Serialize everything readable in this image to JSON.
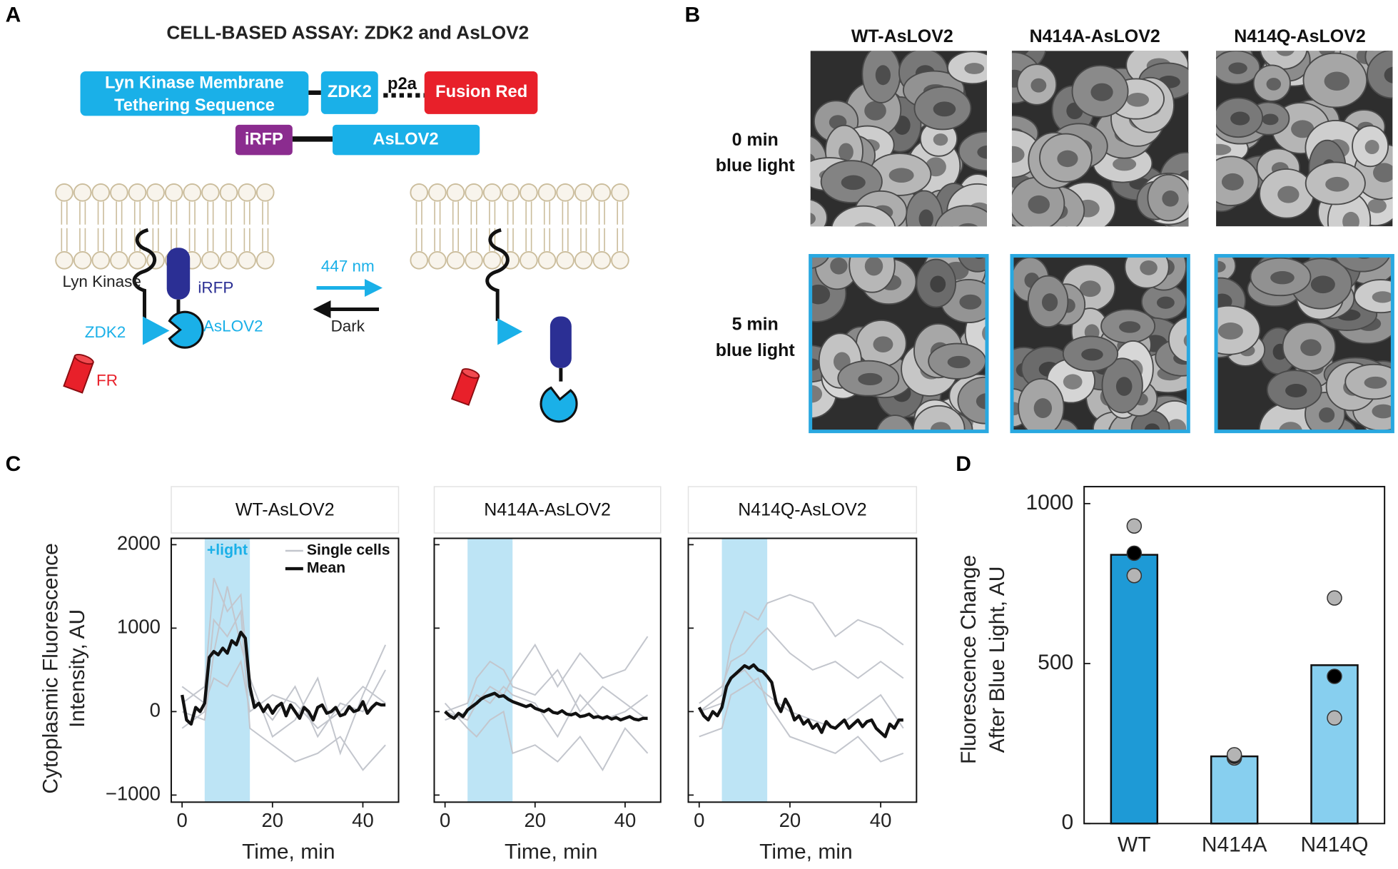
{
  "panels": {
    "A": {
      "letter": "A",
      "title": "CELL-BASED ASSAY: ZDK2 and AsLOV2",
      "construct1": {
        "tether": [
          "Lyn Kinase Membrane",
          "Tethering Sequence"
        ],
        "zdk2": "ZDK2",
        "p2a": "p2a",
        "fusion_red": "Fusion Red"
      },
      "construct2": {
        "irfp": "iRFP",
        "aslov2": "AsLOV2"
      },
      "diagram": {
        "lyn_kinase": "Lyn Kinase",
        "irfp": "iRFP",
        "zdk2": "ZDK2",
        "aslov2": "AsLOV2",
        "fr": "FR",
        "light": "447 nm",
        "dark": "Dark"
      }
    },
    "B": {
      "letter": "B",
      "columns": [
        "WT-AsLOV2",
        "N414A-AsLOV2",
        "N414Q-AsLOV2"
      ],
      "rows": [
        [
          "0 min",
          "blue light"
        ],
        [
          "5 min",
          "blue light"
        ]
      ]
    },
    "C": {
      "letter": "C"
    },
    "D": {
      "letter": "D"
    }
  },
  "chart_data": [
    {
      "type": "line",
      "title": "WT-AsLOV2",
      "xlabel": "Time, min",
      "ylabel": [
        "Cytoplasmic Fluorescence",
        "Intensity, AU"
      ],
      "xlim": [
        -2.4,
        47.9
      ],
      "ylim": [
        -1085,
        2076
      ],
      "xticks": [
        0,
        20,
        40
      ],
      "yticks": [
        {
          "value": -1000,
          "label": "−1000"
        },
        0,
        1000,
        2000
      ],
      "show_ytick_labels": true,
      "shaded": {
        "start": 5,
        "end": 15,
        "color": "#bde4f5"
      },
      "annotation": "+light",
      "legend": true,
      "series": [
        {
          "name": "Single cells",
          "color": "#c3c6cd",
          "x": [
            0,
            5,
            7,
            10,
            13,
            15,
            20,
            25,
            30,
            35,
            40,
            45
          ],
          "traces": [
            [
              100,
              300,
              1600,
              1200,
              1400,
              200,
              -100,
              300,
              -300,
              100,
              0,
              500
            ],
            [
              -200,
              0,
              1100,
              900,
              1200,
              -200,
              -400,
              -600,
              -500,
              -300,
              -700,
              -400
            ],
            [
              300,
              100,
              400,
              300,
              600,
              0,
              200,
              100,
              -200,
              0,
              300,
              100
            ],
            [
              0,
              -100,
              700,
              1500,
              800,
              400,
              -300,
              -100,
              400,
              -500,
              200,
              800
            ]
          ]
        },
        {
          "name": "Mean",
          "color": "#111111",
          "x": [
            0,
            1,
            2,
            3,
            4,
            5,
            6,
            7,
            8,
            9,
            10,
            11,
            12,
            13,
            14,
            15,
            16,
            17,
            18,
            19,
            20,
            21,
            22,
            23,
            24,
            25,
            26,
            27,
            28,
            29,
            30,
            31,
            32,
            33,
            34,
            35,
            36,
            37,
            38,
            39,
            40,
            41,
            42,
            43,
            44,
            45
          ],
          "values": [
            200,
            -100,
            -150,
            50,
            0,
            100,
            650,
            720,
            680,
            760,
            700,
            850,
            800,
            950,
            880,
            300,
            50,
            100,
            0,
            80,
            -20,
            60,
            100,
            -50,
            80,
            0,
            -80,
            50,
            0,
            -100,
            50,
            80,
            -20,
            0,
            50,
            -50,
            -30,
            60,
            0,
            20,
            120,
            -20,
            50,
            100,
            80,
            80
          ]
        }
      ]
    },
    {
      "type": "line",
      "title": "N414A-AsLOV2",
      "xlabel": "Time, min",
      "xlim": [
        -2.4,
        47.9
      ],
      "ylim": [
        -1085,
        2076
      ],
      "xticks": [
        0,
        20,
        40
      ],
      "yticks": [
        -1000,
        0,
        1000,
        2000
      ],
      "show_ytick_labels": false,
      "shaded": {
        "start": 5,
        "end": 15,
        "color": "#bde4f5"
      },
      "series": [
        {
          "name": "Single cells",
          "color": "#c3c6cd",
          "x": [
            0,
            5,
            7,
            10,
            13,
            15,
            20,
            25,
            30,
            35,
            40,
            45
          ],
          "traces": [
            [
              0,
              -100,
              100,
              300,
              200,
              400,
              800,
              300,
              700,
              400,
              500,
              900
            ],
            [
              -100,
              0,
              200,
              100,
              300,
              200,
              100,
              -300,
              200,
              -100,
              0,
              200
            ],
            [
              100,
              -200,
              -300,
              -100,
              0,
              -500,
              -400,
              -600,
              -300,
              -700,
              -200,
              -500
            ],
            [
              0,
              100,
              400,
              600,
              500,
              300,
              200,
              500,
              0,
              300,
              100,
              -100
            ]
          ]
        },
        {
          "name": "Mean",
          "color": "#111111",
          "x": [
            0,
            1,
            2,
            3,
            4,
            5,
            6,
            7,
            8,
            9,
            10,
            11,
            12,
            13,
            14,
            15,
            16,
            17,
            18,
            19,
            20,
            21,
            22,
            23,
            24,
            25,
            26,
            27,
            28,
            29,
            30,
            31,
            32,
            33,
            34,
            35,
            36,
            37,
            38,
            39,
            40,
            41,
            42,
            43,
            44,
            45
          ],
          "values": [
            0,
            -50,
            -80,
            -20,
            -60,
            20,
            60,
            100,
            150,
            180,
            200,
            220,
            180,
            190,
            150,
            120,
            100,
            80,
            60,
            80,
            40,
            20,
            0,
            30,
            -10,
            -20,
            10,
            -30,
            -40,
            -20,
            -60,
            -50,
            -30,
            -70,
            -60,
            -80,
            -60,
            -90,
            -70,
            -100,
            -80,
            -60,
            -90,
            -100,
            -80,
            -80
          ]
        }
      ]
    },
    {
      "type": "line",
      "title": "N414Q-AsLOV2",
      "xlabel": "Time, min",
      "xlim": [
        -2.4,
        47.9
      ],
      "ylim": [
        -1085,
        2076
      ],
      "xticks": [
        0,
        20,
        40
      ],
      "yticks": [
        -1000,
        0,
        1000,
        2000
      ],
      "show_ytick_labels": false,
      "shaded": {
        "start": 5,
        "end": 15,
        "color": "#bde4f5"
      },
      "series": [
        {
          "name": "Single cells",
          "color": "#c3c6cd",
          "x": [
            0,
            5,
            7,
            10,
            13,
            15,
            20,
            25,
            30,
            35,
            40,
            45
          ],
          "traces": [
            [
              0,
              200,
              800,
              1200,
              1100,
              1300,
              1400,
              1300,
              900,
              1100,
              1000,
              800
            ],
            [
              100,
              300,
              600,
              700,
              900,
              1000,
              700,
              500,
              600,
              400,
              600,
              400
            ],
            [
              -300,
              -200,
              200,
              300,
              400,
              100,
              -300,
              -400,
              -500,
              -300,
              -600,
              -500
            ],
            [
              0,
              100,
              400,
              500,
              300,
              200,
              0,
              -100,
              -200,
              0,
              200,
              -200
            ]
          ]
        },
        {
          "name": "Mean",
          "color": "#111111",
          "x": [
            0,
            1,
            2,
            3,
            4,
            5,
            6,
            7,
            8,
            9,
            10,
            11,
            12,
            13,
            14,
            15,
            16,
            17,
            18,
            19,
            20,
            21,
            22,
            23,
            24,
            25,
            26,
            27,
            28,
            29,
            30,
            31,
            32,
            33,
            34,
            35,
            36,
            37,
            38,
            39,
            40,
            41,
            42,
            43,
            44,
            45
          ],
          "values": [
            50,
            -50,
            -100,
            0,
            -50,
            50,
            300,
            400,
            450,
            500,
            550,
            520,
            560,
            500,
            480,
            420,
            350,
            100,
            0,
            150,
            50,
            -100,
            -50,
            -150,
            -100,
            -200,
            -150,
            -250,
            -120,
            -180,
            -200,
            -150,
            -100,
            -200,
            -150,
            -100,
            -180,
            -120,
            -100,
            -200,
            -250,
            -300,
            -150,
            -200,
            -100,
            -100
          ]
        }
      ]
    },
    {
      "type": "bar",
      "ylabel": [
        "Fluorescence Change",
        "After Blue Light, AU"
      ],
      "categories": [
        "WT",
        "N414A",
        "N414Q"
      ],
      "values": [
        840,
        210,
        495
      ],
      "colors": [
        "#1e9ad6",
        "#87cfef",
        "#87cfef"
      ],
      "points": [
        [
          930,
          845,
          775
        ],
        [
          205,
          210,
          215
        ],
        [
          705,
          460,
          330
        ]
      ],
      "point_colors": [
        "#b4b4b4",
        "#000000",
        "#b4b4b4"
      ],
      "ylim": [
        0,
        1053
      ],
      "yticks": [
        0,
        500,
        1000
      ]
    }
  ]
}
